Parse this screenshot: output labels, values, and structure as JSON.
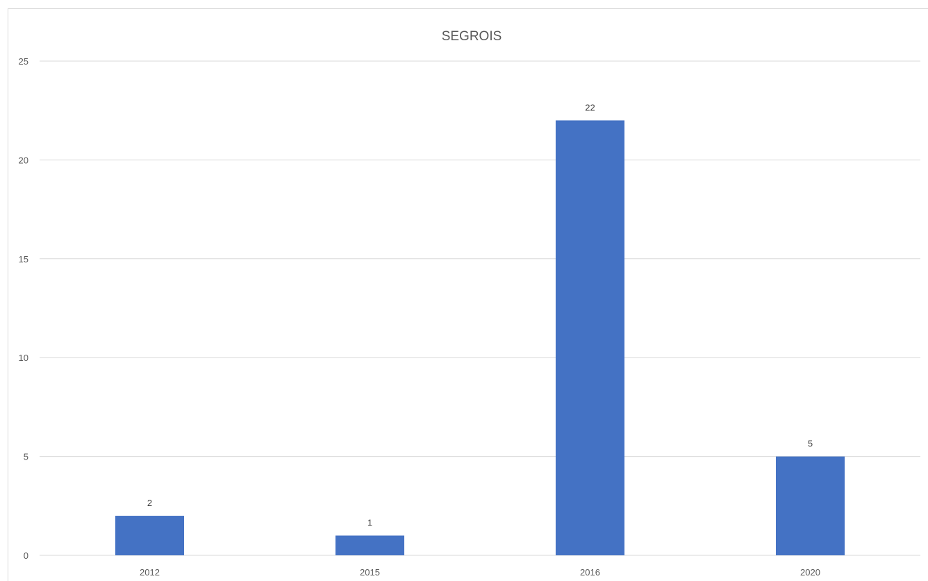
{
  "chart_data": {
    "type": "bar",
    "title": "SEGROIS",
    "categories": [
      "2012",
      "2015",
      "2016",
      "2020"
    ],
    "values": [
      2,
      1,
      22,
      5
    ],
    "xlabel": "",
    "ylabel": "",
    "ylim": [
      0,
      25
    ],
    "yticks": [
      0,
      5,
      10,
      15,
      20,
      25
    ],
    "grid": true,
    "legend": "none",
    "data_labels": true,
    "bar_color": "#4472c4"
  }
}
